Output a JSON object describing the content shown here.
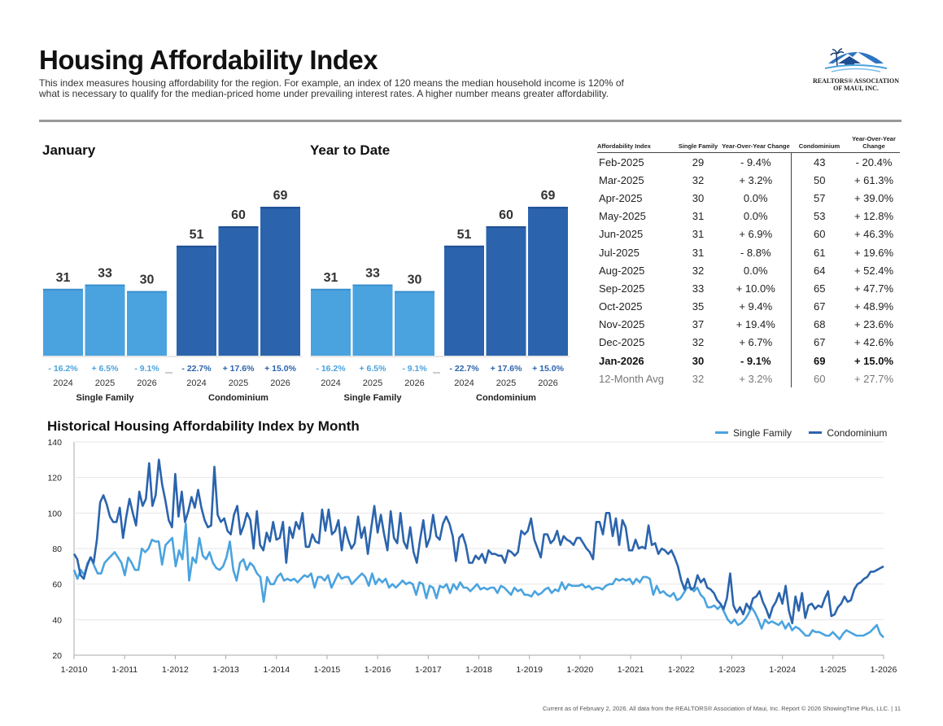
{
  "header": {
    "title": "Housing Affordability Index",
    "subtitle": "This index measures housing affordability for the region. For example, an index of 120 means the median household income is 120% of what is necessary to qualify for the median-priced home under prevailing interest rates. A higher number means greater affordability.",
    "logo_line1": "REALTORS® ASSOCIATION",
    "logo_line2": "OF MAUI, INC."
  },
  "colors": {
    "single_family": "#4aa3df",
    "condominium": "#2b64ad",
    "rule": "#999999"
  },
  "chart_data": [
    {
      "type": "bar",
      "title": "January",
      "groups": [
        {
          "name": "Single Family",
          "categories": [
            "2024",
            "2025",
            "2026"
          ],
          "values": [
            31,
            33,
            30
          ],
          "changes": [
            "- 16.2%",
            "+ 6.5%",
            "- 9.1%"
          ]
        },
        {
          "name": "Condominium",
          "categories": [
            "2024",
            "2025",
            "2026"
          ],
          "values": [
            51,
            60,
            69
          ],
          "changes": [
            "- 22.7%",
            "+ 17.6%",
            "+ 15.0%"
          ]
        }
      ],
      "ylim": [
        0,
        80
      ]
    },
    {
      "type": "bar",
      "title": "Year to Date",
      "groups": [
        {
          "name": "Single Family",
          "categories": [
            "2024",
            "2025",
            "2026"
          ],
          "values": [
            31,
            33,
            30
          ],
          "changes": [
            "- 16.2%",
            "+ 6.5%",
            "- 9.1%"
          ]
        },
        {
          "name": "Condominium",
          "categories": [
            "2024",
            "2025",
            "2026"
          ],
          "values": [
            51,
            60,
            69
          ],
          "changes": [
            "- 22.7%",
            "+ 17.6%",
            "+ 15.0%"
          ]
        }
      ],
      "ylim": [
        0,
        80
      ]
    },
    {
      "type": "table",
      "columns": [
        "Affordability Index",
        "Single Family",
        "Year-Over-Year Change",
        "Condominium",
        "Year-Over-Year Change"
      ],
      "rows": [
        [
          "Feb-2025",
          "29",
          "- 9.4%",
          "43",
          "- 20.4%"
        ],
        [
          "Mar-2025",
          "32",
          "+ 3.2%",
          "50",
          "+ 61.3%"
        ],
        [
          "Apr-2025",
          "30",
          "0.0%",
          "57",
          "+ 39.0%"
        ],
        [
          "May-2025",
          "31",
          "0.0%",
          "53",
          "+ 12.8%"
        ],
        [
          "Jun-2025",
          "31",
          "+ 6.9%",
          "60",
          "+ 46.3%"
        ],
        [
          "Jul-2025",
          "31",
          "- 8.8%",
          "61",
          "+ 19.6%"
        ],
        [
          "Aug-2025",
          "32",
          "0.0%",
          "64",
          "+ 52.4%"
        ],
        [
          "Sep-2025",
          "33",
          "+ 10.0%",
          "65",
          "+ 47.7%"
        ],
        [
          "Oct-2025",
          "35",
          "+ 9.4%",
          "67",
          "+ 48.9%"
        ],
        [
          "Nov-2025",
          "37",
          "+ 19.4%",
          "68",
          "+ 23.6%"
        ],
        [
          "Dec-2025",
          "32",
          "+ 6.7%",
          "67",
          "+ 42.6%"
        ],
        [
          "Jan-2026",
          "30",
          "- 9.1%",
          "69",
          "+ 15.0%"
        ]
      ],
      "avg_row": [
        "12-Month Avg",
        "32",
        "+ 3.2%",
        "60",
        "+ 27.7%"
      ]
    },
    {
      "type": "line",
      "title": "Historical Housing Affordability Index by Month",
      "ylim": [
        20,
        140
      ],
      "yticks": [
        20,
        40,
        60,
        80,
        100,
        120,
        140
      ],
      "xticks": [
        "1-2010",
        "1-2011",
        "1-2012",
        "1-2013",
        "1-2014",
        "1-2015",
        "1-2016",
        "1-2017",
        "1-2018",
        "1-2019",
        "1-2020",
        "1-2021",
        "1-2022",
        "1-2023",
        "1-2024",
        "1-2025",
        "1-2026"
      ],
      "x_start": "1-2010",
      "x_end": "1-2026",
      "series": [
        {
          "name": "Single Family",
          "values": [
            68,
            63,
            68,
            65,
            72,
            75,
            70,
            66,
            66,
            72,
            74,
            76,
            78,
            75,
            72,
            65,
            75,
            72,
            68,
            68,
            80,
            78,
            80,
            85,
            84,
            84,
            71,
            82,
            84,
            86,
            70,
            79,
            74,
            94,
            62,
            75,
            72,
            86,
            76,
            74,
            78,
            72,
            69,
            68,
            70,
            75,
            84,
            68,
            62,
            72,
            74,
            68,
            72,
            70,
            66,
            64,
            50,
            64,
            60,
            60,
            64,
            66,
            62,
            63,
            62,
            63,
            61,
            63,
            65,
            64,
            66,
            58,
            64,
            64,
            62,
            65,
            58,
            62,
            66,
            63,
            64,
            64,
            60,
            62,
            64,
            66,
            64,
            59,
            66,
            60,
            63,
            61,
            63,
            58,
            60,
            58,
            60,
            62,
            60,
            61,
            60,
            54,
            61,
            60,
            52,
            59,
            58,
            52,
            59,
            58,
            60,
            55,
            60,
            57,
            61,
            58,
            58,
            56,
            58,
            60,
            57,
            58,
            57,
            58,
            58,
            55,
            59,
            58,
            56,
            54,
            58,
            56,
            57,
            54,
            54,
            53,
            56,
            54,
            55,
            57,
            58,
            55,
            57,
            56,
            61,
            57,
            60,
            59,
            59,
            59,
            60,
            58,
            59,
            57,
            58,
            58,
            57,
            59,
            60,
            60,
            63,
            62,
            63,
            62,
            63,
            60,
            63,
            61,
            64,
            64,
            63,
            54,
            59,
            55,
            56,
            54,
            53,
            55,
            51,
            52,
            55,
            58,
            58,
            56,
            58,
            54,
            52,
            47,
            47,
            48,
            46,
            48,
            44,
            40,
            38,
            40,
            37,
            38,
            40,
            43,
            47,
            44,
            40,
            35,
            40,
            38,
            39,
            38,
            37,
            39,
            35,
            38,
            34,
            36,
            35,
            33,
            31,
            31,
            34,
            33,
            33,
            32,
            31,
            31,
            33,
            31,
            29,
            32,
            34,
            33,
            32,
            31,
            31,
            31,
            32,
            33,
            35,
            37,
            32,
            30
          ]
        },
        {
          "name": "Condominium",
          "values": [
            77,
            74,
            65,
            63,
            70,
            75,
            72,
            85,
            106,
            110,
            105,
            98,
            95,
            95,
            103,
            86,
            98,
            108,
            100,
            93,
            112,
            104,
            108,
            128,
            104,
            110,
            130,
            116,
            107,
            96,
            92,
            122,
            98,
            112,
            95,
            101,
            109,
            103,
            113,
            103,
            96,
            92,
            93,
            126,
            99,
            95,
            97,
            90,
            88,
            99,
            104,
            88,
            93,
            100,
            96,
            80,
            101,
            82,
            79,
            89,
            84,
            95,
            85,
            86,
            95,
            72,
            92,
            86,
            95,
            91,
            100,
            81,
            81,
            88,
            84,
            83,
            102,
            90,
            102,
            88,
            90,
            96,
            79,
            92,
            85,
            80,
            83,
            98,
            86,
            92,
            77,
            91,
            104,
            89,
            99,
            88,
            79,
            101,
            86,
            83,
            100,
            84,
            80,
            92,
            78,
            72,
            85,
            96,
            81,
            86,
            99,
            87,
            85,
            94,
            98,
            94,
            87,
            73,
            86,
            88,
            82,
            72,
            72,
            76,
            74,
            77,
            72,
            79,
            77,
            77,
            76,
            76,
            72,
            79,
            78,
            76,
            78,
            90,
            88,
            90,
            97,
            85,
            80,
            75,
            88,
            88,
            83,
            85,
            90,
            82,
            87,
            85,
            84,
            82,
            86,
            86,
            83,
            80,
            78,
            74,
            95,
            95,
            88,
            100,
            100,
            87,
            97,
            82,
            96,
            92,
            79,
            79,
            85,
            80,
            81,
            80,
            93,
            82,
            83,
            77,
            80,
            79,
            77,
            79,
            75,
            70,
            62,
            57,
            63,
            57,
            58,
            65,
            61,
            63,
            58,
            57,
            55,
            51,
            49,
            46,
            52,
            66,
            48,
            44,
            47,
            43,
            49,
            46,
            52,
            53,
            56,
            50,
            46,
            41,
            47,
            50,
            55,
            49,
            59,
            45,
            38,
            53,
            45,
            55,
            41,
            48,
            49,
            46,
            48,
            47,
            52,
            56,
            42,
            43,
            47,
            49,
            53,
            50,
            51,
            57,
            60,
            61,
            63,
            64,
            67,
            67,
            68,
            69,
            70
          ]
        }
      ]
    }
  ],
  "footer": "Current as of February 2, 2026. All data from the REALTORS® Association of Maui, Inc. Report © 2026 ShowingTime Plus, LLC. | 11"
}
